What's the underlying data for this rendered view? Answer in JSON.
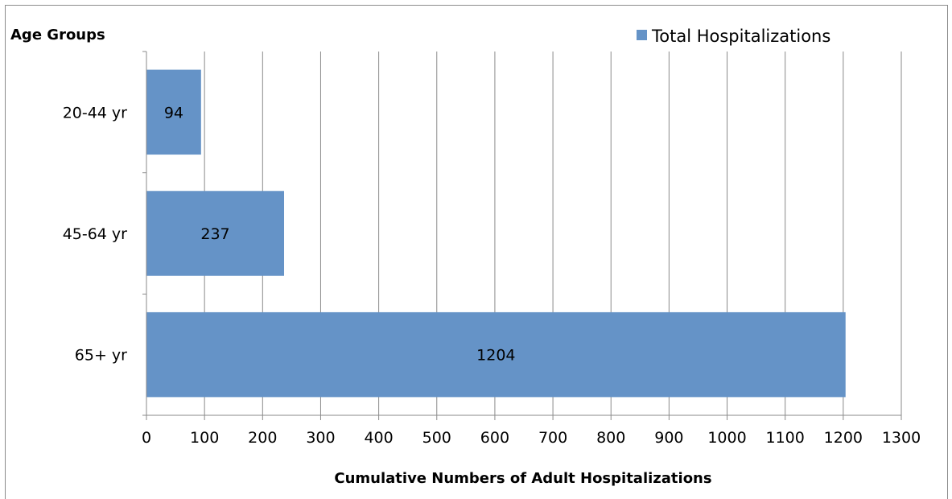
{
  "chart_data": {
    "type": "bar",
    "orientation": "horizontal",
    "categories": [
      "20-44 yr",
      "45-64 yr",
      "65+ yr"
    ],
    "series": [
      {
        "name": "Total Hospitalizations",
        "values": [
          94,
          237,
          1204
        ],
        "color": "#6593c7"
      }
    ],
    "data_labels": [
      "94",
      "237",
      "1204"
    ],
    "ylabel": "Age Groups",
    "xlabel": "Cumulative Numbers of Adult Hospitalizations",
    "xlim": [
      0,
      1300
    ],
    "xticks": [
      0,
      100,
      200,
      300,
      400,
      500,
      600,
      700,
      800,
      900,
      1000,
      1100,
      1200,
      1300
    ],
    "grid": "vertical",
    "legend_position": "top-right"
  }
}
